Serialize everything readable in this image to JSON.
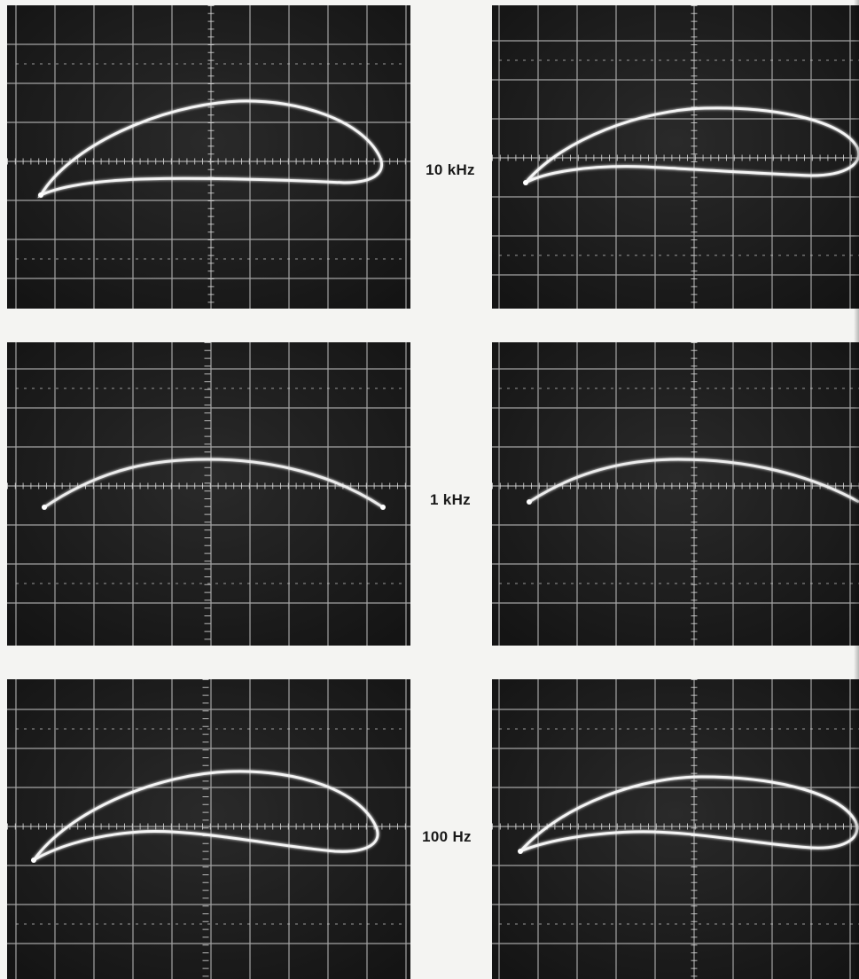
{
  "rows": [
    {
      "frequency_label": "10 kHz",
      "trace": "loop"
    },
    {
      "frequency_label": "1 kHz",
      "trace": "arc"
    },
    {
      "frequency_label": "100 Hz",
      "trace": "loop"
    }
  ],
  "colors": {
    "page": "#f4f4f2",
    "screen": "#1c1c1c",
    "graticule": "#c8c8c8",
    "trace": "#f2f2f2"
  }
}
